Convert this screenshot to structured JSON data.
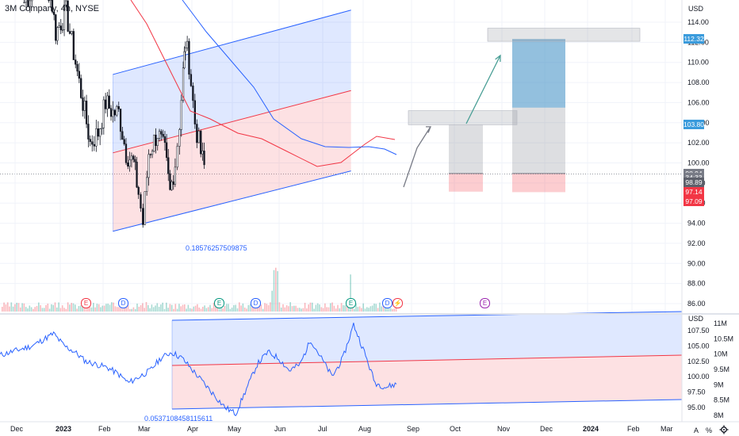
{
  "header": {
    "symbol_title": "3M Company, 4h, NYSE"
  },
  "price_axis": {
    "currency": "USD",
    "ticks": [
      "114.00",
      "112.00",
      "110.00",
      "108.00",
      "106.00",
      "104.00",
      "102.00",
      "100.00",
      "98.00",
      "96.00",
      "94.00",
      "92.00",
      "90.00",
      "88.00",
      "86.00"
    ],
    "tick_values": [
      114,
      112,
      110,
      108,
      106,
      104,
      102,
      100,
      98,
      96,
      94,
      92,
      90,
      88,
      86
    ],
    "labels": [
      {
        "text": "112.32",
        "value": 112.32,
        "color": "#3a9bdc",
        "dark": false
      },
      {
        "text": "103.80",
        "value": 103.8,
        "color": "#3a9bdc",
        "dark": false
      },
      {
        "text": "98.95",
        "value": 98.95,
        "color": "#787b86",
        "dark": false
      },
      {
        "text": "98.94",
        "value": 98.94,
        "color": "#787b86",
        "dark": false
      },
      {
        "text": "34:33",
        "value": 98.55,
        "color": "#787b86",
        "dark": false
      },
      {
        "text": "98.89",
        "value": 98.03,
        "color": "#5d606b",
        "dark": false
      },
      {
        "text": "97.14",
        "value": 97.14,
        "color": "#f23645",
        "dark": false
      },
      {
        "text": "97.09",
        "value": 96.2,
        "color": "#f23645",
        "dark": false
      }
    ]
  },
  "volume_axis": {
    "currency": "USD",
    "ticks": [
      "11M",
      "10.5M",
      "10M",
      "9.5M",
      "9M",
      "8.5M",
      "8M"
    ],
    "tick_values": [
      11,
      10.5,
      10,
      9.5,
      9,
      8.5,
      8
    ]
  },
  "indicator_axis": {
    "ticks": [
      "107.50",
      "105.00",
      "102.50",
      "100.00",
      "97.50",
      "95.00"
    ],
    "tick_values": [
      107.5,
      105,
      102.5,
      100,
      97.5,
      95
    ]
  },
  "time_axis": {
    "labels": [
      "Dec",
      "2023",
      "Feb",
      "Mar",
      "Apr",
      "May",
      "Jun",
      "Jul",
      "Aug",
      "Sep",
      "Oct",
      "Nov",
      "Dec",
      "2024",
      "Feb",
      "Mar"
    ],
    "bold": [
      false,
      true,
      false,
      false,
      false,
      false,
      false,
      false,
      false,
      false,
      false,
      false,
      false,
      true,
      false,
      false
    ]
  },
  "annotations": {
    "main_channel_value": "0.18576257509875",
    "lower_channel_value": "0.0537108458115611"
  },
  "events": [
    {
      "letter": "E",
      "color": "#f23645"
    },
    {
      "letter": "D",
      "color": "#2962ff"
    },
    {
      "letter": "E",
      "color": "#089981"
    },
    {
      "letter": "D",
      "color": "#2962ff"
    },
    {
      "letter": "E",
      "color": "#089981"
    },
    {
      "letter": "D",
      "color": "#2962ff"
    },
    {
      "letter": "⚡",
      "color": "#f23645"
    },
    {
      "letter": "E",
      "color": "#9c27b0"
    }
  ],
  "controls": {
    "auto_label": "A",
    "log_label": "%",
    "settings_icon": "gear-icon"
  },
  "chart_data": [
    {
      "type": "candlestick",
      "title": "3M Company, 4h, NYSE",
      "ylim": [
        85,
        116
      ],
      "price_path": [
        {
          "x": "2022-12-20",
          "y": 116
        },
        {
          "x": "2023-01-10",
          "y": 118
        },
        {
          "x": "2023-01-25",
          "y": 117
        },
        {
          "x": "2023-02-01",
          "y": 113
        },
        {
          "x": "2023-02-15",
          "y": 115
        },
        {
          "x": "2023-02-28",
          "y": 110
        },
        {
          "x": "2023-03-10",
          "y": 106
        },
        {
          "x": "2023-03-20",
          "y": 102
        },
        {
          "x": "2023-03-31",
          "y": 103
        },
        {
          "x": "2023-04-10",
          "y": 106
        },
        {
          "x": "2023-04-20",
          "y": 105
        },
        {
          "x": "2023-04-28",
          "y": 105
        },
        {
          "x": "2023-05-08",
          "y": 101
        },
        {
          "x": "2023-05-18",
          "y": 100
        },
        {
          "x": "2023-05-25",
          "y": 97
        },
        {
          "x": "2023-05-31",
          "y": 94
        },
        {
          "x": "2023-06-08",
          "y": 101
        },
        {
          "x": "2023-06-20",
          "y": 103
        },
        {
          "x": "2023-06-30",
          "y": 101
        },
        {
          "x": "2023-07-07",
          "y": 97
        },
        {
          "x": "2023-07-14",
          "y": 100
        },
        {
          "x": "2023-07-20",
          "y": 104
        },
        {
          "x": "2023-07-25",
          "y": 109
        },
        {
          "x": "2023-07-28",
          "y": 112
        },
        {
          "x": "2023-08-02",
          "y": 110
        },
        {
          "x": "2023-08-10",
          "y": 104
        },
        {
          "x": "2023-08-18",
          "y": 101
        },
        {
          "x": "2023-08-25",
          "y": 98.9
        }
      ],
      "moving_averages": [
        {
          "name": "",
          "color": "#f23645"
        },
        {
          "name": "",
          "color": "#2962ff"
        }
      ],
      "channel": {
        "upper_start": [
          "2023-04-20",
          108.8
        ],
        "upper_end": [
          "2024-03-10",
          115.2
        ],
        "lower_start": [
          "2023-04-20",
          93.2
        ],
        "lower_end": [
          "2024-03-10",
          99.2
        ]
      },
      "long_positions": [
        {
          "entry": 98.95,
          "target": 103.8,
          "stop": 97.14
        },
        {
          "entry": 98.95,
          "target": 112.32,
          "stop": 97.09
        }
      ]
    },
    {
      "type": "line",
      "ylim": [
        93.5,
        108.5
      ],
      "series": [
        {
          "values": [
            103.5,
            104,
            104.5,
            105,
            106,
            107,
            105,
            104,
            102.5,
            102,
            101.5,
            100.5,
            99,
            100,
            101,
            103,
            104,
            103,
            101,
            99,
            97,
            95,
            94,
            98,
            102,
            104,
            103,
            101,
            102,
            106,
            103,
            100,
            103,
            108.5,
            104,
            99,
            98.3,
            98.8
          ]
        }
      ]
    }
  ]
}
